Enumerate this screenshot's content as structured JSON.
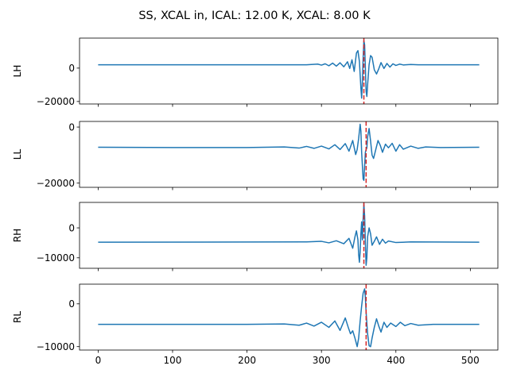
{
  "figure": {
    "title": "SS, XCAL in, ICAL: 12.00 K, XCAL: 8.00 K"
  },
  "chart_data": [
    {
      "type": "line",
      "ylabel": "LH",
      "xlim": [
        -25,
        537
      ],
      "ylim": [
        -21500,
        18000
      ],
      "yticks": [
        -20000,
        0
      ],
      "ytick_labels": [
        "−20000",
        "0"
      ],
      "xticks": [
        0,
        100,
        200,
        300,
        400,
        500
      ],
      "xtick_labels": [],
      "line_color": "#1f77b4",
      "marker": {
        "x": 357,
        "color": "#d62728",
        "style": "dashed"
      },
      "series": [
        {
          "points": [
            [
              0,
              2000
            ],
            [
              280,
              2000
            ],
            [
              295,
              2400
            ],
            [
              300,
              1800
            ],
            [
              305,
              2600
            ],
            [
              310,
              1400
            ],
            [
              315,
              3000
            ],
            [
              320,
              1200
            ],
            [
              325,
              3200
            ],
            [
              330,
              800
            ],
            [
              335,
              3800
            ],
            [
              338,
              -200
            ],
            [
              341,
              5000
            ],
            [
              344,
              -2000
            ],
            [
              347,
              9000
            ],
            [
              349,
              10500
            ],
            [
              351,
              4000
            ],
            [
              353,
              -12000
            ],
            [
              354,
              -18000
            ],
            [
              355,
              -8000
            ],
            [
              356,
              6000
            ],
            [
              357,
              16500
            ],
            [
              358,
              14000
            ],
            [
              359,
              0
            ],
            [
              360,
              -14000
            ],
            [
              361,
              -17000
            ],
            [
              362,
              -10000
            ],
            [
              364,
              2000
            ],
            [
              366,
              7500
            ],
            [
              368,
              6500
            ],
            [
              371,
              -1000
            ],
            [
              374,
              -3500
            ],
            [
              377,
              -400
            ],
            [
              380,
              3300
            ],
            [
              384,
              -200
            ],
            [
              388,
              2800
            ],
            [
              392,
              600
            ],
            [
              396,
              2600
            ],
            [
              400,
              1600
            ],
            [
              405,
              2400
            ],
            [
              410,
              1900
            ],
            [
              420,
              2200
            ],
            [
              430,
              2000
            ],
            [
              512,
              2000
            ]
          ]
        }
      ]
    },
    {
      "type": "line",
      "ylabel": "LL",
      "xlim": [
        -25,
        537
      ],
      "ylim": [
        -21500,
        2000
      ],
      "yticks": [
        -20000,
        0
      ],
      "ytick_labels": [
        "−20000",
        "0"
      ],
      "xticks": [
        0,
        100,
        200,
        300,
        400,
        500
      ],
      "xtick_labels": [],
      "line_color": "#1f77b4",
      "marker": {
        "x": 360,
        "color": "#d62728",
        "style": "dashed"
      },
      "series": [
        {
          "points": [
            [
              0,
              -7200
            ],
            [
              100,
              -7300
            ],
            [
              200,
              -7300
            ],
            [
              250,
              -7100
            ],
            [
              270,
              -7500
            ],
            [
              280,
              -6900
            ],
            [
              290,
              -7600
            ],
            [
              300,
              -6800
            ],
            [
              310,
              -7800
            ],
            [
              318,
              -6300
            ],
            [
              325,
              -8000
            ],
            [
              332,
              -5900
            ],
            [
              337,
              -8600
            ],
            [
              342,
              -4800
            ],
            [
              346,
              -9800
            ],
            [
              348,
              -8000
            ],
            [
              350,
              -4000
            ],
            [
              352,
              1000
            ],
            [
              353,
              -1500
            ],
            [
              354,
              -9000
            ],
            [
              356,
              -18500
            ],
            [
              357,
              -19000
            ],
            [
              358,
              -14000
            ],
            [
              359,
              -9000
            ],
            [
              360,
              -8000
            ],
            [
              361,
              -7500
            ],
            [
              362,
              -3500
            ],
            [
              364,
              -500
            ],
            [
              366,
              -5000
            ],
            [
              368,
              -10000
            ],
            [
              370,
              -11200
            ],
            [
              373,
              -8000
            ],
            [
              376,
              -4800
            ],
            [
              379,
              -6500
            ],
            [
              382,
              -9000
            ],
            [
              386,
              -6100
            ],
            [
              390,
              -7400
            ],
            [
              395,
              -5800
            ],
            [
              400,
              -8600
            ],
            [
              405,
              -6300
            ],
            [
              410,
              -7900
            ],
            [
              420,
              -6800
            ],
            [
              430,
              -7600
            ],
            [
              440,
              -7100
            ],
            [
              460,
              -7300
            ],
            [
              512,
              -7200
            ]
          ]
        }
      ]
    },
    {
      "type": "line",
      "ylabel": "RH",
      "xlim": [
        -25,
        537
      ],
      "ylim": [
        -13500,
        8500
      ],
      "yticks": [
        -10000,
        0
      ],
      "ytick_labels": [
        "−10000",
        "0"
      ],
      "xticks": [
        0,
        100,
        200,
        300,
        400,
        500
      ],
      "xtick_labels": [],
      "line_color": "#1f77b4",
      "marker": {
        "x": 357,
        "color": "#d62728",
        "style": "dashed"
      },
      "series": [
        {
          "points": [
            [
              0,
              -4800
            ],
            [
              280,
              -4700
            ],
            [
              300,
              -4500
            ],
            [
              310,
              -5000
            ],
            [
              320,
              -4300
            ],
            [
              330,
              -5300
            ],
            [
              337,
              -3500
            ],
            [
              342,
              -6800
            ],
            [
              345,
              -3000
            ],
            [
              347,
              -1000
            ],
            [
              349,
              -4000
            ],
            [
              350,
              -9000
            ],
            [
              351,
              -11500
            ],
            [
              352,
              -8000
            ],
            [
              353,
              -2000
            ],
            [
              354,
              2000
            ],
            [
              355,
              -4000
            ],
            [
              356,
              3000
            ],
            [
              357,
              8000
            ],
            [
              358,
              4000
            ],
            [
              359,
              -5000
            ],
            [
              360,
              -12500
            ],
            [
              361,
              -10000
            ],
            [
              362,
              -3000
            ],
            [
              364,
              0
            ],
            [
              366,
              -2000
            ],
            [
              368,
              -5800
            ],
            [
              371,
              -4500
            ],
            [
              374,
              -3000
            ],
            [
              378,
              -5500
            ],
            [
              382,
              -3800
            ],
            [
              386,
              -5100
            ],
            [
              390,
              -4400
            ],
            [
              400,
              -4900
            ],
            [
              420,
              -4700
            ],
            [
              512,
              -4800
            ]
          ]
        }
      ]
    },
    {
      "type": "line",
      "ylabel": "RL",
      "xlim": [
        -25,
        537
      ],
      "ylim": [
        -10800,
        4600
      ],
      "yticks": [
        -10000,
        0
      ],
      "ytick_labels": [
        "−10000",
        "0"
      ],
      "xticks": [
        0,
        100,
        200,
        300,
        400,
        500
      ],
      "xtick_labels": [
        "0",
        "100",
        "200",
        "300",
        "400",
        "500"
      ],
      "line_color": "#1f77b4",
      "marker": {
        "x": 360,
        "color": "#d62728",
        "style": "dashed"
      },
      "series": [
        {
          "points": [
            [
              0,
              -4800
            ],
            [
              200,
              -4800
            ],
            [
              250,
              -4700
            ],
            [
              270,
              -5000
            ],
            [
              280,
              -4500
            ],
            [
              290,
              -5200
            ],
            [
              300,
              -4300
            ],
            [
              310,
              -5500
            ],
            [
              318,
              -4000
            ],
            [
              325,
              -6200
            ],
            [
              332,
              -3300
            ],
            [
              336,
              -5500
            ],
            [
              339,
              -7000
            ],
            [
              342,
              -6300
            ],
            [
              345,
              -8000
            ],
            [
              348,
              -10000
            ],
            [
              350,
              -8000
            ],
            [
              352,
              -4000
            ],
            [
              354,
              -500
            ],
            [
              356,
              2500
            ],
            [
              358,
              3500
            ],
            [
              359,
              1500
            ],
            [
              360,
              -2000
            ],
            [
              362,
              -7000
            ],
            [
              364,
              -9800
            ],
            [
              366,
              -10000
            ],
            [
              368,
              -8000
            ],
            [
              371,
              -5500
            ],
            [
              374,
              -3500
            ],
            [
              377,
              -5200
            ],
            [
              380,
              -6600
            ],
            [
              384,
              -4300
            ],
            [
              388,
              -5500
            ],
            [
              393,
              -4500
            ],
            [
              400,
              -5300
            ],
            [
              406,
              -4300
            ],
            [
              412,
              -5100
            ],
            [
              420,
              -4600
            ],
            [
              430,
              -5000
            ],
            [
              450,
              -4800
            ],
            [
              512,
              -4800
            ]
          ]
        }
      ]
    }
  ]
}
